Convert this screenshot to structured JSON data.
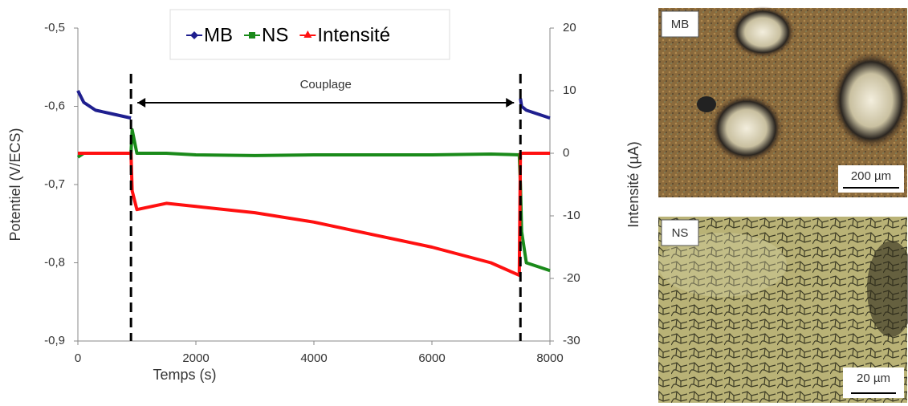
{
  "chart_data": {
    "type": "line",
    "x": [
      0,
      100,
      300,
      600,
      900,
      920,
      1000,
      1500,
      2000,
      3000,
      4000,
      5000,
      6000,
      7000,
      7480,
      7500,
      7520,
      7600,
      7800,
      8000
    ],
    "series": [
      {
        "name": "MB",
        "color": "#1f1f8f",
        "marker": "diamond",
        "values": [
          -0.58,
          -0.595,
          -0.605,
          -0.61,
          -0.615,
          null,
          null,
          null,
          null,
          null,
          null,
          null,
          null,
          null,
          null,
          -0.59,
          -0.6,
          -0.605,
          -0.61,
          -0.615
        ]
      },
      {
        "name": "NS",
        "color": "#1a8a1a",
        "marker": "square",
        "values": [
          -0.665,
          -0.66,
          -0.66,
          -0.66,
          -0.66,
          -0.63,
          -0.66,
          -0.66,
          -0.662,
          -0.663,
          -0.662,
          -0.662,
          -0.662,
          -0.661,
          -0.662,
          -0.7,
          -0.76,
          -0.8,
          -0.805,
          -0.81
        ]
      },
      {
        "name": "Intensité",
        "color": "#ff1010",
        "marker": "triangle",
        "axis": "y2",
        "values": [
          0,
          0,
          0,
          0,
          0,
          -6,
          -9,
          -8,
          -8.5,
          -9.5,
          -11,
          -13,
          -15,
          -17.5,
          -19.5,
          0,
          0,
          0,
          0,
          0
        ]
      }
    ],
    "xlabel": "Temps (s)",
    "ylabel": "Potentiel (V/ECS)",
    "y2label": "Intensité (µA)",
    "xlim": [
      0,
      8000
    ],
    "xticks": [
      0,
      2000,
      4000,
      6000,
      8000
    ],
    "ylim": [
      -0.9,
      -0.5
    ],
    "yticks": [
      {
        "value": -0.9,
        "label": "-0,9"
      },
      {
        "value": -0.8,
        "label": "-0,8"
      },
      {
        "value": -0.7,
        "label": "-0,7"
      },
      {
        "value": -0.6,
        "label": "-0,6"
      },
      {
        "value": -0.5,
        "label": "-0,5"
      }
    ],
    "y2lim": [
      -30,
      20
    ],
    "y2ticks": [
      -30,
      -20,
      -10,
      0,
      10,
      20
    ],
    "vlines": [
      900,
      7500
    ],
    "annotation": "Couplage",
    "legend": "top"
  },
  "images": [
    {
      "label": "MB",
      "scale": "200 µm"
    },
    {
      "label": "NS",
      "scale": "20 µm"
    }
  ]
}
